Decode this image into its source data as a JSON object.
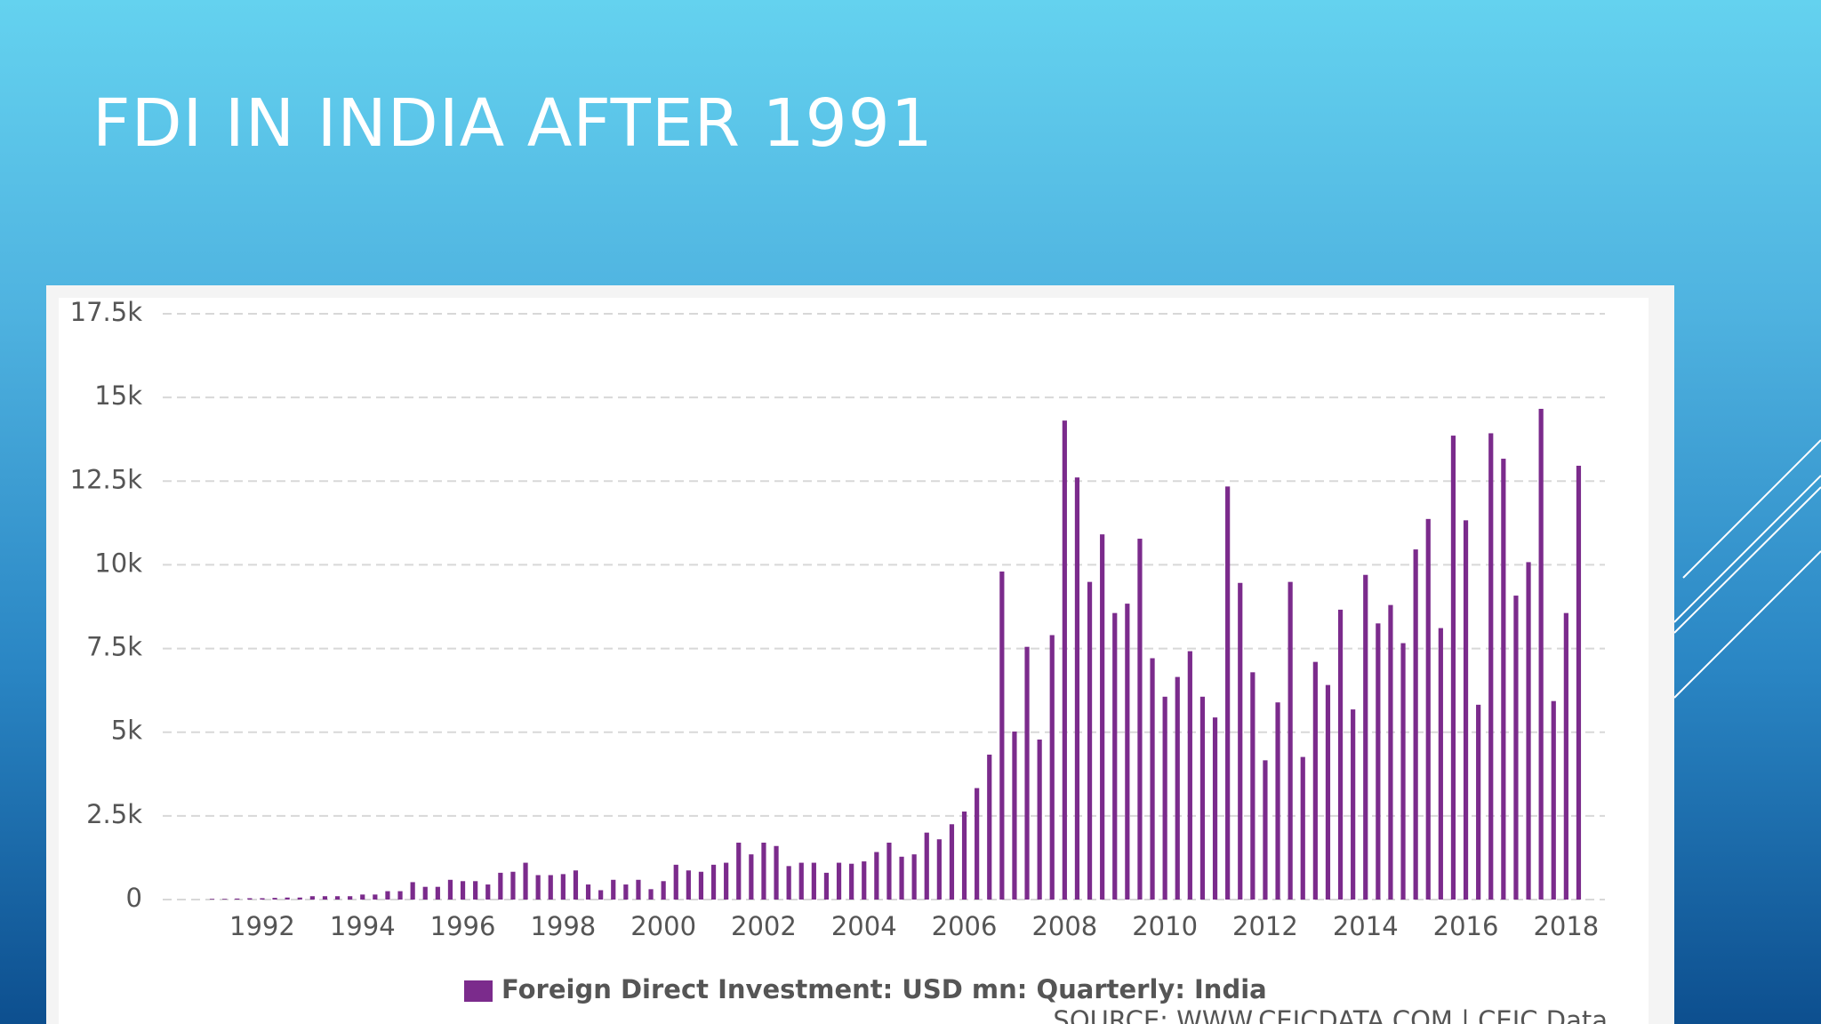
{
  "title": "FDI IN INDIA AFTER 1991",
  "chart_data": {
    "type": "bar",
    "categories": [
      null,
      null,
      null,
      null,
      "1992",
      null,
      null,
      null,
      null,
      null,
      null,
      null,
      "1994",
      null,
      null,
      null,
      null,
      null,
      null,
      null,
      "1996",
      null,
      null,
      null,
      null,
      null,
      null,
      null,
      "1998",
      null,
      null,
      null,
      null,
      null,
      null,
      null,
      "2000",
      null,
      null,
      null,
      null,
      null,
      null,
      null,
      "2002",
      null,
      null,
      null,
      null,
      null,
      null,
      null,
      "2004",
      null,
      null,
      null,
      null,
      null,
      null,
      null,
      "2006",
      null,
      null,
      null,
      null,
      null,
      null,
      null,
      "2008",
      null,
      null,
      null,
      null,
      null,
      null,
      null,
      "2010",
      null,
      null,
      null,
      null,
      null,
      null,
      null,
      "2012",
      null,
      null,
      null,
      null,
      null,
      null,
      null,
      "2014",
      null,
      null,
      null,
      null,
      null,
      null,
      null,
      "2016",
      null,
      null,
      null,
      null,
      null,
      null,
      null,
      "2018",
      null
    ],
    "series": [
      {
        "name": "Foreign Direct Investment: USD mn: Quarterly: India",
        "color": "#7b2b8c",
        "values": [
          20,
          20,
          30,
          40,
          40,
          50,
          60,
          60,
          100,
          100,
          100,
          100,
          150,
          150,
          250,
          250,
          520,
          380,
          380,
          590,
          550,
          550,
          450,
          800,
          830,
          1100,
          730,
          730,
          760,
          870,
          450,
          280,
          590,
          450,
          590,
          310,
          550,
          1040,
          870,
          830,
          1040,
          1100,
          1700,
          1350,
          1700,
          1600,
          1000,
          1100,
          1100,
          800,
          1100,
          1070,
          1140,
          1420,
          1700,
          1280,
          1350,
          2000,
          1800,
          2250,
          2630,
          3330,
          4330,
          9800,
          5020,
          7550,
          4780,
          7900,
          14310,
          12610,
          9490,
          10910,
          8560,
          8840,
          10780,
          7210,
          6060,
          6650,
          7420,
          6060,
          5440,
          12340,
          9460,
          6790,
          4160,
          5890,
          9490,
          4260,
          7100,
          6410,
          8660,
          5680,
          9700,
          8250,
          8800,
          7660,
          10460,
          11370,
          8110,
          13860,
          11330,
          5820,
          13930,
          13170,
          9080,
          10080,
          14660,
          5930,
          8560,
          12960
        ]
      }
    ],
    "ylim": [
      0,
      17500
    ],
    "yticks": [
      0,
      {
        "value": 2500,
        "label": "2.5k"
      },
      {
        "value": 5000,
        "label": "5k"
      },
      {
        "value": 7500,
        "label": "7.5k"
      },
      {
        "value": 10000,
        "label": "10k"
      },
      {
        "value": 12500,
        "label": "12.5k"
      },
      {
        "value": 15000,
        "label": "15k"
      },
      {
        "value": 17500,
        "label": "17.5k"
      }
    ],
    "grid": true,
    "legend": "bottom",
    "source": "SOURCE: WWW.CEICDATA.COM | CEIC Data"
  }
}
